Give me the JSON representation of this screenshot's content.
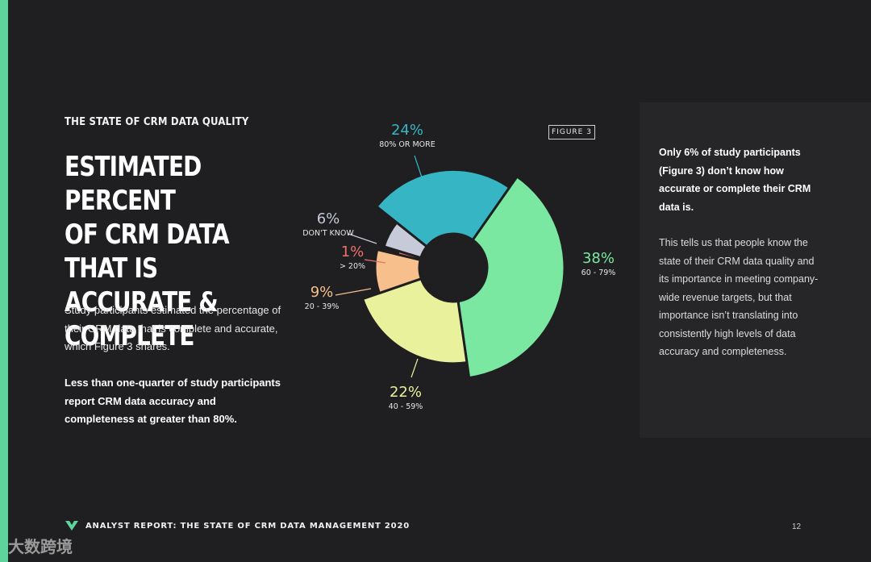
{
  "colors": {
    "accent": "#5ed39b",
    "background": "#1f1f21",
    "panel": "#262628"
  },
  "header": {
    "eyebrow": "THE STATE OF CRM DATA QUALITY",
    "title": "ESTIMATED PERCENT\nOF CRM DATA THAT IS\nACCURATE &\nCOMPLETE"
  },
  "body": {
    "description": "Study participants estimated the percentage of their CRM data that is complete and accurate, which Figure 3 shares.",
    "highlight": "Less than one-quarter of study participants report CRM data accuracy and completeness at greater than 80%."
  },
  "figure_label": "FIGURE 3",
  "side_panel": {
    "bold_text": "Only 6% of study participants (Figure 3) don’t know how accurate or complete their CRM data is.",
    "text": "This tells us that people know the state of their CRM data quality and its importance in meeting company-wide revenue targets, but that importance isn’t translating into consistently high levels of data accuracy and completeness."
  },
  "footer": {
    "report_title": "ANALYST REPORT: THE STATE OF CRM DATA MANAGEMENT 2020",
    "page_number": "12",
    "logo_icon": "v-chevron-icon",
    "watermark": "大数跨境"
  },
  "chart_data": {
    "type": "pie",
    "style": "rose-donut",
    "slices": [
      {
        "label": "60 - 79%",
        "value": 38,
        "display": "38%",
        "color": "#7ae8a1"
      },
      {
        "label": "40 - 59%",
        "value": 22,
        "display": "22%",
        "color": "#eaf19c"
      },
      {
        "label": "20 - 39%",
        "value": 9,
        "display": "9%",
        "color": "#f7bf8c"
      },
      {
        "label": "> 20%",
        "value": 1,
        "display": "1%",
        "color": "#ef6f6c"
      },
      {
        "label": "DON'T KNOW",
        "value": 6,
        "display": "6%",
        "color": "#c7cad8"
      },
      {
        "label": "80% OR MORE",
        "value": 24,
        "display": "24%",
        "color": "#36b6c4"
      }
    ]
  }
}
